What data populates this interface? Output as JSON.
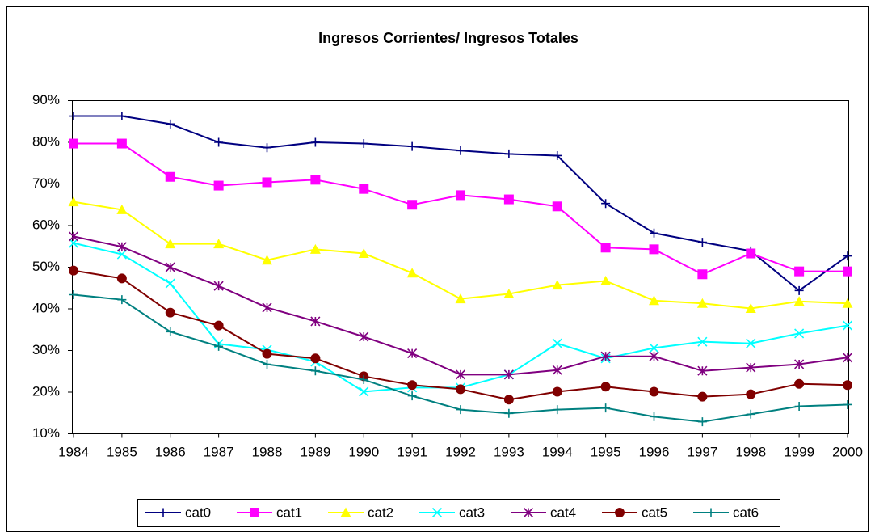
{
  "chart_data": {
    "type": "line",
    "title": "Ingresos Corrientes/ Ingresos Totales",
    "categories": [
      "1984",
      "1985",
      "1986",
      "1987",
      "1988",
      "1989",
      "1990",
      "1991",
      "1992",
      "1993",
      "1994",
      "1995",
      "1996",
      "1997",
      "1998",
      "1999",
      "2000"
    ],
    "ylim": [
      10,
      90
    ],
    "yticks": [
      {
        "value": 10,
        "label": "10%"
      },
      {
        "value": 20,
        "label": "20%"
      },
      {
        "value": 30,
        "label": "30%"
      },
      {
        "value": 40,
        "label": "40%"
      },
      {
        "value": 50,
        "label": "50%"
      },
      {
        "value": 60,
        "label": "60%"
      },
      {
        "value": 70,
        "label": "70%"
      },
      {
        "value": 80,
        "label": "80%"
      },
      {
        "value": 90,
        "label": "90%"
      }
    ],
    "grid": false,
    "legend": "bottom",
    "series": [
      {
        "name": "cat0",
        "color": "#000080",
        "marker": "plus",
        "values": [
          86.3,
          86.3,
          84.4,
          80,
          78.7,
          80,
          79.7,
          79,
          78,
          77.2,
          76.8,
          65.3,
          58.2,
          56,
          53.9,
          44.4,
          52.7
        ]
      },
      {
        "name": "cat1",
        "color": "#ff00ff",
        "marker": "square",
        "values": [
          79.7,
          79.7,
          71.7,
          69.6,
          70.4,
          71,
          68.8,
          65,
          67.3,
          66.3,
          64.6,
          54.7,
          54.3,
          48.3,
          53.3,
          49,
          49
        ]
      },
      {
        "name": "cat2",
        "color": "#ffff00",
        "marker": "triangle",
        "values": [
          65.7,
          63.8,
          55.6,
          55.6,
          51.7,
          54.3,
          53.3,
          48.6,
          42.4,
          43.6,
          45.7,
          46.7,
          42,
          41.3,
          40.1,
          41.8,
          41.3
        ]
      },
      {
        "name": "cat3",
        "color": "#00ffff",
        "marker": "x",
        "values": [
          55.8,
          53.1,
          46.1,
          31.6,
          30.2,
          27.3,
          20.1,
          21.1,
          21.1,
          24.2,
          31.7,
          28.1,
          30.6,
          32.1,
          31.7,
          34.1,
          36
        ]
      },
      {
        "name": "cat4",
        "color": "#800080",
        "marker": "star",
        "values": [
          57.4,
          54.9,
          50,
          45.5,
          40.3,
          37,
          33.3,
          29.3,
          24.2,
          24.2,
          25.3,
          28.6,
          28.6,
          25.1,
          25.9,
          26.7,
          28.3
        ]
      },
      {
        "name": "cat5",
        "color": "#800000",
        "marker": "circle",
        "values": [
          49.2,
          47.3,
          39.1,
          36,
          29.2,
          28.1,
          23.8,
          21.7,
          20.7,
          18.2,
          20.1,
          21.3,
          20.1,
          18.9,
          19.5,
          22,
          21.7
        ]
      },
      {
        "name": "cat6",
        "color": "#008080",
        "marker": "plus",
        "values": [
          43.4,
          42.2,
          34.5,
          31,
          26.7,
          25.1,
          23,
          19.1,
          15.8,
          14.9,
          15.8,
          16.2,
          14.1,
          12.9,
          14.7,
          16.6,
          17
        ]
      }
    ]
  }
}
